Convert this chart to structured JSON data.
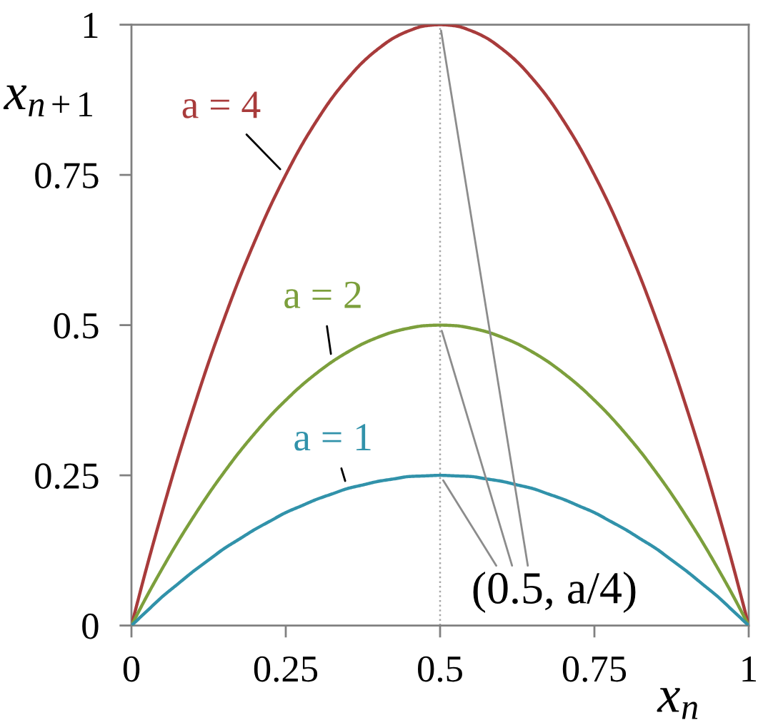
{
  "chart_data": {
    "type": "line",
    "xlabel": "x$_{n}$",
    "ylabel": "x$_{n+1}$",
    "x": [
      0,
      0.025,
      0.05,
      0.075,
      0.1,
      0.125,
      0.15,
      0.175,
      0.2,
      0.225,
      0.25,
      0.275,
      0.3,
      0.325,
      0.35,
      0.375,
      0.4,
      0.425,
      0.45,
      0.475,
      0.5,
      0.525,
      0.55,
      0.575,
      0.6,
      0.625,
      0.65,
      0.675,
      0.7,
      0.725,
      0.75,
      0.775,
      0.8,
      0.825,
      0.85,
      0.875,
      0.9,
      0.925,
      0.95,
      0.975,
      1
    ],
    "xlim": [
      0,
      1
    ],
    "ylim": [
      0,
      1
    ],
    "xticks": [
      0,
      0.25,
      0.5,
      0.75,
      1
    ],
    "yticks": [
      0,
      0.25,
      0.5,
      0.75,
      1
    ],
    "grid": false,
    "legend": false,
    "marker": "none",
    "line_style": "solid",
    "series": [
      {
        "name": "a = 4",
        "color": "#a83b3b",
        "values": [
          0,
          0.098,
          0.19,
          0.278,
          0.36,
          0.438,
          0.51,
          0.578,
          0.64,
          0.698,
          0.75,
          0.798,
          0.84,
          0.878,
          0.91,
          0.938,
          0.96,
          0.978,
          0.99,
          0.998,
          1,
          0.998,
          0.99,
          0.978,
          0.96,
          0.938,
          0.91,
          0.878,
          0.84,
          0.798,
          0.75,
          0.698,
          0.64,
          0.578,
          0.51,
          0.438,
          0.36,
          0.278,
          0.19,
          0.098,
          0
        ]
      },
      {
        "name": "a = 2",
        "color": "#7c9f3c",
        "values": [
          0,
          0.049,
          0.095,
          0.139,
          0.18,
          0.219,
          0.255,
          0.289,
          0.32,
          0.349,
          0.375,
          0.399,
          0.42,
          0.439,
          0.455,
          0.469,
          0.48,
          0.489,
          0.495,
          0.499,
          0.5,
          0.499,
          0.495,
          0.489,
          0.48,
          0.469,
          0.455,
          0.439,
          0.42,
          0.399,
          0.375,
          0.349,
          0.32,
          0.289,
          0.255,
          0.219,
          0.18,
          0.139,
          0.095,
          0.049,
          0
        ]
      },
      {
        "name": "a = 1",
        "color": "#3192aa",
        "values": [
          0,
          0.024,
          0.048,
          0.069,
          0.09,
          0.109,
          0.128,
          0.144,
          0.16,
          0.174,
          0.188,
          0.199,
          0.21,
          0.219,
          0.228,
          0.234,
          0.24,
          0.244,
          0.248,
          0.249,
          0.25,
          0.249,
          0.248,
          0.244,
          0.24,
          0.234,
          0.228,
          0.219,
          0.21,
          0.199,
          0.188,
          0.174,
          0.16,
          0.144,
          0.128,
          0.109,
          0.09,
          0.069,
          0.048,
          0.024,
          0
        ]
      }
    ],
    "ref_lines": [
      {
        "axis": "x",
        "value": 0.5,
        "color": "#a6a6a6",
        "line_style": "dotted"
      }
    ],
    "annotations": [
      {
        "text": "(0.5, a/4)",
        "x": 0.5,
        "y": 0.25
      }
    ]
  }
}
